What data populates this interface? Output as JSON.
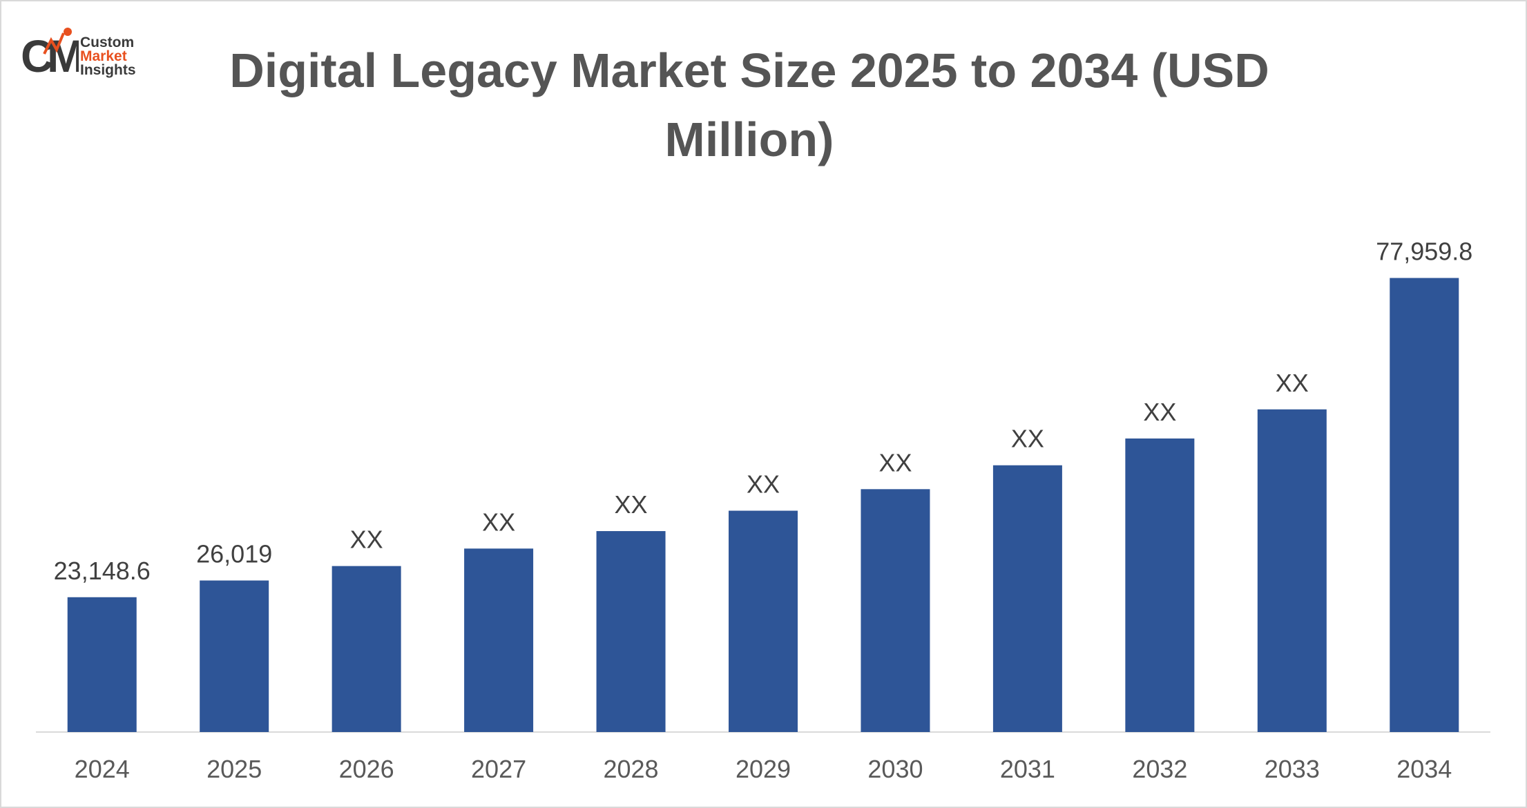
{
  "logo": {
    "line1": "Custom",
    "line2": "Market",
    "line3": "Insights"
  },
  "colors": {
    "bar": "#2e5597",
    "title": "#555555",
    "label": "#404040",
    "axis": "#d9d9d9",
    "logo_accent": "#e8501f"
  },
  "chart_data": {
    "type": "bar",
    "title": "Digital Legacy Market Size 2025 to 2034 (USD Million)",
    "xlabel": "",
    "ylabel": "",
    "grid": false,
    "categories": [
      "2024",
      "2025",
      "2026",
      "2027",
      "2028",
      "2029",
      "2030",
      "2031",
      "2032",
      "2033",
      "2034"
    ],
    "values": [
      23148.6,
      26019,
      28500,
      31500,
      34500,
      38000,
      41700,
      45800,
      50400,
      55400,
      77959.8
    ],
    "data_labels": [
      "23,148.6",
      "26,019",
      "XX",
      "XX",
      "XX",
      "XX",
      "XX",
      "XX",
      "XX",
      "XX",
      "77,959.8"
    ],
    "ylim": [
      0,
      83000
    ]
  }
}
